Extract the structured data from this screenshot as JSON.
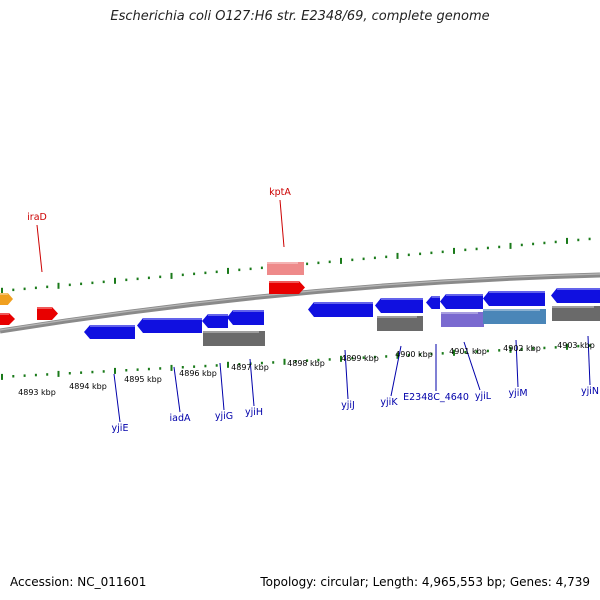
{
  "title": "Escherichia coli O127:H6 str. E2348/69, complete genome",
  "footer": {
    "accession": "Accession: NC_011601",
    "info": "Topology: circular; Length: 4,965,553 bp; Genes: 4,739"
  },
  "colors": {
    "backbone": "#8a8a8a",
    "tick": "#1a7a1a",
    "forward_gene": "#e80000",
    "forward_gene_light": "#ee8a8a",
    "reverse_gene": "#1010e0",
    "grey_feature": "#6a6a6a",
    "purple_feature": "#7a6ad0",
    "steel_feature": "#4a86b8",
    "orange_feature": "#f0a020",
    "forward_label": "#cc0000",
    "reverse_label": "#0000aa"
  },
  "kbp_labels": [
    "4893 kbp",
    "4894 kbp",
    "4895 kbp",
    "4896 kbp",
    "4897 kbp",
    "4898 kbp",
    "4899 kbp",
    "4900 kbp",
    "4901 kbp",
    "4902 kbp",
    "4903 kbp"
  ],
  "forward_genes": [
    "iraD",
    "kptA"
  ],
  "reverse_genes": [
    "yjiE",
    "iadA",
    "yjiG",
    "yjiH",
    "yjiJ",
    "yjiK",
    "E2348C_4640",
    "yjiL",
    "yjiM",
    "yjiN"
  ]
}
